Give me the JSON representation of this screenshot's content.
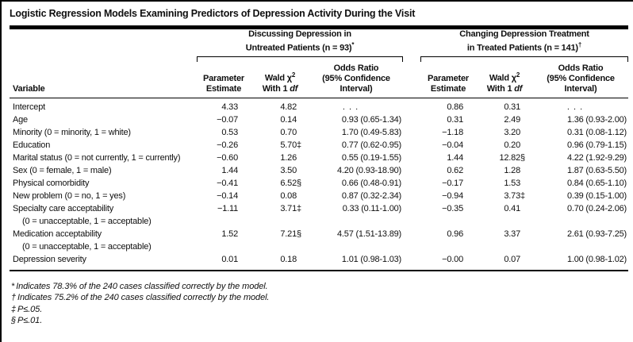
{
  "title": "Logistic Regression Models Examining Predictors of Depression Activity During the Visit",
  "groups": [
    {
      "line1": "Discussing Depression in",
      "line2": "Untreated Patients (n = 93)",
      "marker": "*"
    },
    {
      "line1": "Changing Depression Treatment",
      "line2": "in Treated Patients (n = 141)",
      "marker": "†"
    }
  ],
  "columns": {
    "variable": "Variable",
    "parameter_estimate": {
      "line1": "Parameter",
      "line2": "Estimate"
    },
    "wald": {
      "line1_text": "Wald χ",
      "sup": "2",
      "line2_text": "With 1",
      "df": "df"
    },
    "odds_ratio": {
      "line1": "Odds Ratio",
      "line2": "(95% Confidence",
      "line3": "Interval)"
    }
  },
  "table": {
    "rows": [
      {
        "label": "Intercept",
        "label2": "",
        "m1": {
          "pe": "4.33",
          "wald": "4.82",
          "mark": "",
          "or": ". . ."
        },
        "m2": {
          "pe": "0.86",
          "wald": "0.31",
          "mark": "",
          "or": ". . ."
        }
      },
      {
        "label": "Age",
        "label2": "",
        "m1": {
          "pe": "−0.07",
          "wald": "0.14",
          "mark": "",
          "or": "0.93 (0.65-1.34)"
        },
        "m2": {
          "pe": "0.31",
          "wald": "2.49",
          "mark": "",
          "or": "1.36 (0.93-2.00)"
        }
      },
      {
        "label": "Minority (0 = minority, 1 = white)",
        "label2": "",
        "m1": {
          "pe": "0.53",
          "wald": "0.70",
          "mark": "",
          "or": "1.70 (0.49-5.83)"
        },
        "m2": {
          "pe": "−1.18",
          "wald": "3.20",
          "mark": "",
          "or": "0.31 (0.08-1.12)"
        }
      },
      {
        "label": "Education",
        "label2": "",
        "m1": {
          "pe": "−0.26",
          "wald": "5.70",
          "mark": "‡",
          "or": "0.77 (0.62-0.95)"
        },
        "m2": {
          "pe": "−0.04",
          "wald": "0.20",
          "mark": "",
          "or": "0.96 (0.79-1.15)"
        }
      },
      {
        "label": "Marital status (0 = not currently, 1 = currently)",
        "label2": "",
        "m1": {
          "pe": "−0.60",
          "wald": "1.26",
          "mark": "",
          "or": "0.55 (0.19-1.55)"
        },
        "m2": {
          "pe": "1.44",
          "wald": "12.82",
          "mark": "§",
          "or": "4.22 (1.92-9.29)"
        }
      },
      {
        "label": "Sex (0 = female, 1 = male)",
        "label2": "",
        "m1": {
          "pe": "1.44",
          "wald": "3.50",
          "mark": "",
          "or": "4.20 (0.93-18.90)"
        },
        "m2": {
          "pe": "0.62",
          "wald": "1.28",
          "mark": "",
          "or": "1.87 (0.63-5.50)"
        }
      },
      {
        "label": "Physical comorbidity",
        "label2": "",
        "m1": {
          "pe": "−0.41",
          "wald": "6.52",
          "mark": "§",
          "or": "0.66 (0.48-0.91)"
        },
        "m2": {
          "pe": "−0.17",
          "wald": "1.53",
          "mark": "",
          "or": "0.84 (0.65-1.10)"
        }
      },
      {
        "label": "New problem (0 = no, 1 = yes)",
        "label2": "",
        "m1": {
          "pe": "−0.14",
          "wald": "0.08",
          "mark": "",
          "or": "0.87 (0.32-2.34)"
        },
        "m2": {
          "pe": "−0.94",
          "wald": "3.73",
          "mark": "‡",
          "or": "0.39 (0.15-1.00)"
        }
      },
      {
        "label": "Specialty care acceptability",
        "label2": "(0 = unacceptable, 1 = acceptable)",
        "m1": {
          "pe": "−1.11",
          "wald": "3.71",
          "mark": "‡",
          "or": "0.33 (0.11-1.00)"
        },
        "m2": {
          "pe": "−0.35",
          "wald": "0.41",
          "mark": "",
          "or": "0.70 (0.24-2.06)"
        }
      },
      {
        "label": "Medication acceptability",
        "label2": "(0 = unacceptable, 1 = acceptable)",
        "m1": {
          "pe": "1.52",
          "wald": "7.21",
          "mark": "§",
          "or": "4.57 (1.51-13.89)"
        },
        "m2": {
          "pe": "0.96",
          "wald": "3.37",
          "mark": "",
          "or": "2.61 (0.93-7.25)"
        }
      },
      {
        "label": "Depression severity",
        "label2": "",
        "m1": {
          "pe": "0.01",
          "wald": "0.18",
          "mark": "",
          "or": "1.01 (0.98-1.03)"
        },
        "m2": {
          "pe": "−0.00",
          "wald": "0.07",
          "mark": "",
          "or": "1.00 (0.98-1.02)"
        }
      }
    ]
  },
  "footnotes": [
    {
      "marker": "*",
      "text": "Indicates 78.3% of the 240 cases classified correctly by the model."
    },
    {
      "marker": "†",
      "text": "Indicates 75.2% of the 240 cases classified correctly by the model."
    },
    {
      "marker": "‡",
      "text": "P≤.05."
    },
    {
      "marker": "§",
      "text": "P≤.01."
    }
  ],
  "colors": {
    "text": "#0f0f0f",
    "rule": "#000000",
    "background": "#ffffff"
  }
}
